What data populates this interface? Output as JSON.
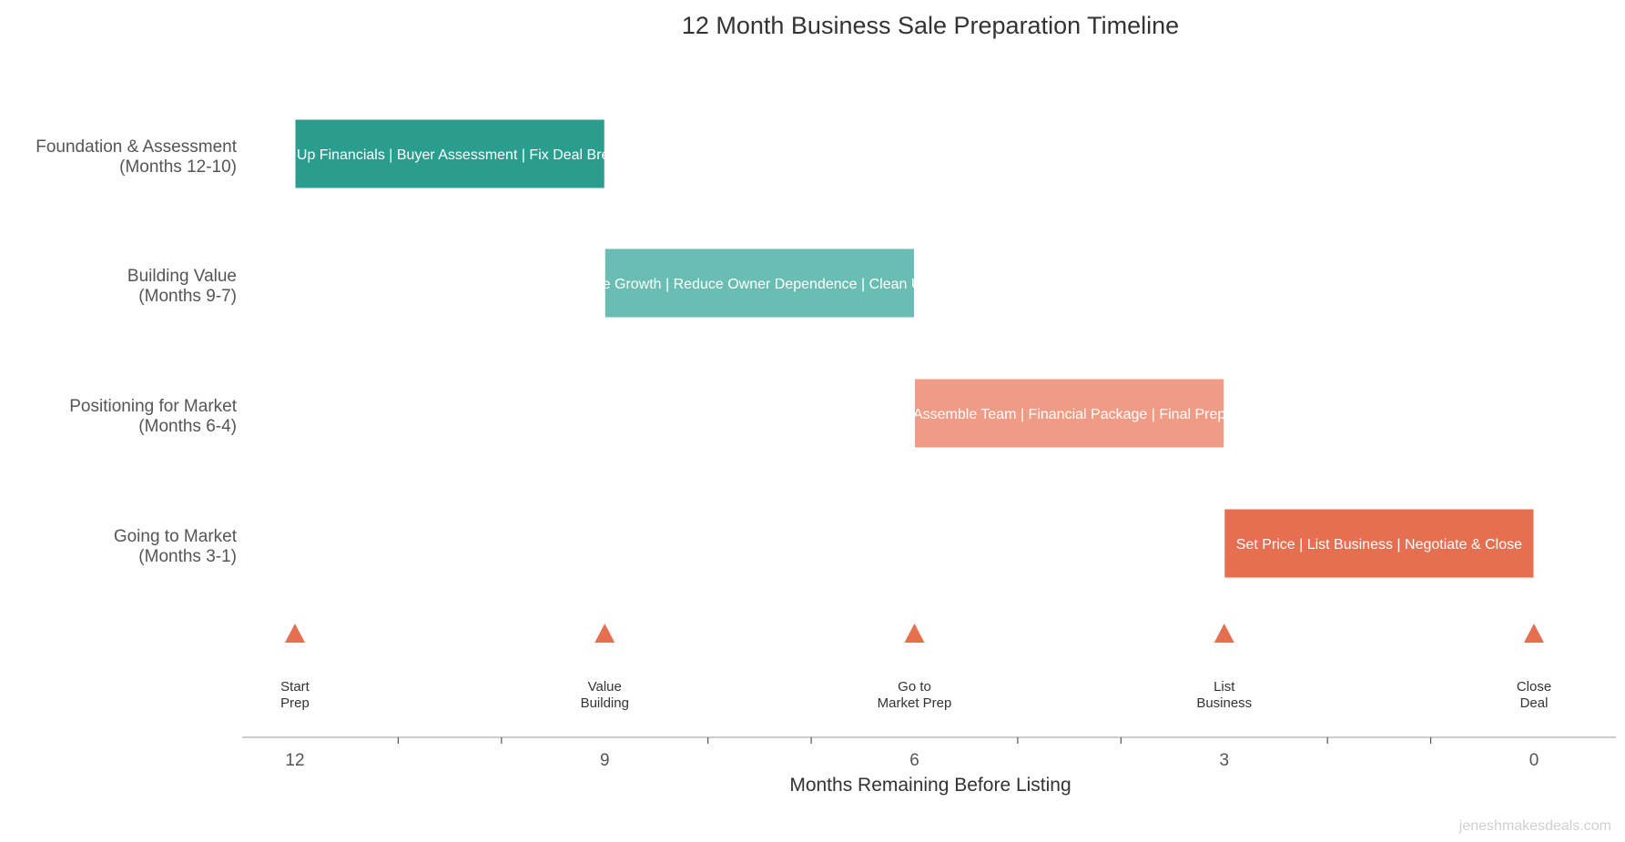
{
  "chart_data": {
    "type": "bar",
    "orientation": "horizontal-timeline",
    "title": "12 Month Business Sale Preparation Timeline",
    "xlabel": "Months Remaining Before Listing",
    "ylabel": "",
    "xlim": [
      12.5,
      -0.8
    ],
    "x_reversed": true,
    "xticks_major": [
      12,
      9,
      6,
      3,
      0
    ],
    "xticks_minor": [
      11,
      10,
      8,
      7,
      5,
      4,
      2,
      1
    ],
    "grid": false,
    "phases": [
      {
        "label_line1": "Foundation & Assessment",
        "label_line2": "(Months 12-10)",
        "start": 12,
        "end": 9,
        "tasks": "Clean Up Financials  |  Buyer Assessment  |  Fix Deal Breakers",
        "color": "#2a9d8f"
      },
      {
        "label_line1": "Building Value",
        "label_line2": "(Months 9-7)",
        "start": 9,
        "end": 6,
        "tasks": "Drive Revenue Growth  |  Reduce Owner Dependence  |  Clean Up Operations",
        "color": "#69bdb3"
      },
      {
        "label_line1": "Positioning for Market",
        "label_line2": "(Months 6-4)",
        "start": 6,
        "end": 3,
        "tasks": "Assemble Team  |  Financial Package  |  Final Prep",
        "color": "#f09b86"
      },
      {
        "label_line1": "Going to Market",
        "label_line2": "(Months 3-1)",
        "start": 3,
        "end": 0,
        "tasks": "Set Price  |  List Business  |  Negotiate & Close",
        "color": "#e76f51"
      }
    ],
    "milestones": [
      {
        "x": 12,
        "line1": "Start",
        "line2": "Prep"
      },
      {
        "x": 9,
        "line1": "Value",
        "line2": "Building"
      },
      {
        "x": 6,
        "line1": "Go to",
        "line2": "Market Prep"
      },
      {
        "x": 3,
        "line1": "List",
        "line2": "Business"
      },
      {
        "x": 0,
        "line1": "Close",
        "line2": "Deal"
      }
    ],
    "milestone_color": "#e76f51",
    "axis_color": "#bbbbbb"
  },
  "watermark": "jeneshmakesdeals.com"
}
